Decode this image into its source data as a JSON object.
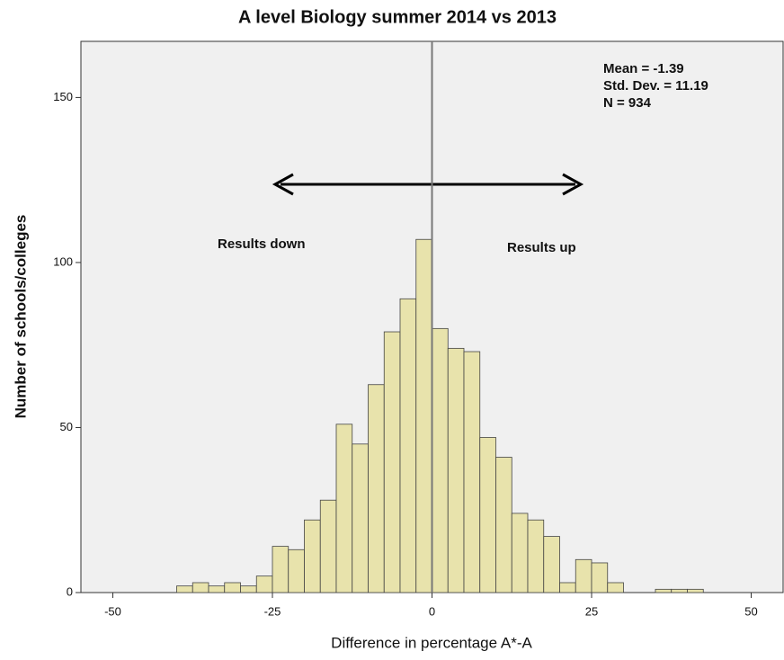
{
  "chart_data": {
    "type": "histogram",
    "title": "A level Biology summer 2014 vs 2013",
    "x_label": "Difference in percentage A*-A",
    "y_label": "Number of schools/colleges",
    "bins": [
      -40,
      -37.5,
      -35,
      -32.5,
      -30,
      -27.5,
      -25,
      -22.5,
      -20,
      -17.5,
      -15,
      -12.5,
      -10,
      -7.5,
      -5,
      -2.5,
      0,
      2.5,
      5,
      7.5,
      10,
      12.5,
      15,
      17.5,
      20,
      22.5,
      25,
      27.5,
      30,
      32.5,
      35,
      37.5,
      40,
      42.5
    ],
    "values": [
      2,
      3,
      2,
      3,
      2,
      5,
      14,
      13,
      22,
      28,
      51,
      45,
      63,
      79,
      89,
      107,
      80,
      74,
      73,
      47,
      41,
      24,
      22,
      17,
      3,
      10,
      9,
      3,
      0,
      0,
      1,
      1,
      1
    ],
    "color": "#e8e3ac",
    "xlim": [
      -55,
      55
    ],
    "xticks": [
      -50,
      -25,
      0,
      25,
      50
    ],
    "ylim": [
      0,
      167
    ],
    "yticks": [
      0,
      50,
      100,
      150
    ],
    "reference_line_x": 0,
    "annotations": [
      "Mean = -1.39",
      "Std. Dev. = 11.19",
      "N = 934",
      "Results down",
      "Results up"
    ]
  }
}
